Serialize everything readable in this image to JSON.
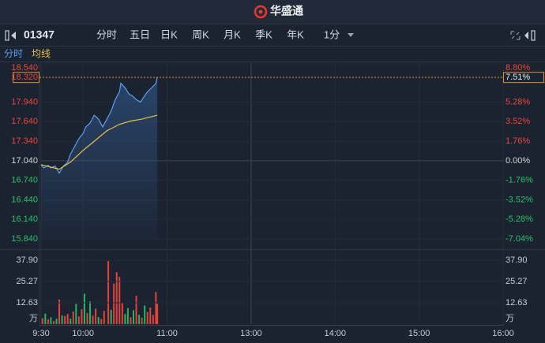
{
  "header": {
    "title": "华盛通"
  },
  "toolbar": {
    "symbol": "01347",
    "tabs": [
      "分时",
      "五日",
      "日K",
      "周K",
      "月K",
      "季K",
      "年K",
      "1分"
    ],
    "active_tab": 0
  },
  "chart_data": [
    {
      "type": "line",
      "series": [
        {
          "name": "分时",
          "color": "#5aa0f2",
          "x": [
            0,
            2,
            5,
            7,
            10,
            13,
            16,
            19,
            21,
            24,
            27,
            30,
            32,
            35,
            38,
            41,
            44,
            47,
            50,
            53,
            56,
            57,
            60,
            63,
            65,
            68,
            71,
            74,
            76,
            79,
            82,
            83
          ],
          "values": [
            16.98,
            16.93,
            16.97,
            16.93,
            16.96,
            16.85,
            16.96,
            17.02,
            17.14,
            17.26,
            17.38,
            17.46,
            17.56,
            17.62,
            17.74,
            17.68,
            17.56,
            17.68,
            17.8,
            17.98,
            18.1,
            18.23,
            18.16,
            18.06,
            18.04,
            17.98,
            17.94,
            18.04,
            18.1,
            18.16,
            18.23,
            18.32
          ]
        },
        {
          "name": "均线",
          "color": "#e8c14a",
          "x": [
            0,
            13,
            21,
            30,
            38,
            47,
            56,
            64,
            72,
            83
          ],
          "values": [
            16.98,
            16.91,
            17.02,
            17.2,
            17.34,
            17.5,
            17.6,
            17.65,
            17.68,
            17.74
          ]
        }
      ],
      "ylim": [
        15.84,
        18.54
      ],
      "yticks": [
        {
          "value": 18.54,
          "label": "18.540"
        },
        {
          "value": 17.94,
          "label": "17.940"
        },
        {
          "value": 17.64,
          "label": "17.640"
        },
        {
          "value": 17.34,
          "label": "17.340"
        },
        {
          "value": 17.04,
          "label": "17.040"
        },
        {
          "value": 16.74,
          "label": "16.740"
        },
        {
          "value": 16.44,
          "label": "16.440"
        },
        {
          "value": 16.14,
          "label": "16.140"
        },
        {
          "value": 15.84,
          "label": "15.840"
        }
      ],
      "y2lim": [
        -7.04,
        8.8
      ],
      "y2ticks": [
        {
          "value": 8.8,
          "label": "8.80%"
        },
        {
          "value": 5.28,
          "label": "5.28%"
        },
        {
          "value": 3.52,
          "label": "3.52%"
        },
        {
          "value": 1.76,
          "label": "1.76%"
        },
        {
          "value": 0,
          "label": "0.00%"
        },
        {
          "value": -1.76,
          "label": "-1.76%"
        },
        {
          "value": -3.52,
          "label": "-3.52%"
        },
        {
          "value": -5.28,
          "label": "-5.28%"
        },
        {
          "value": -7.04,
          "label": "-7.04%"
        }
      ],
      "last_price": {
        "value": 18.32,
        "label": "18.320"
      },
      "last_change": {
        "value": 7.51,
        "label": "7.51%"
      },
      "up_color": "#f0463c",
      "down_color": "#27c26c",
      "grid": true
    },
    {
      "type": "bar",
      "x": [
        1,
        3,
        5,
        7,
        9,
        11,
        13,
        15,
        17,
        19,
        21,
        23,
        25,
        27,
        29,
        31,
        33,
        35,
        37,
        39,
        41,
        43,
        45,
        48,
        50,
        52,
        54,
        56,
        58,
        60,
        62,
        64,
        66,
        68,
        70,
        72,
        74,
        76,
        78,
        80,
        82,
        83
      ],
      "values": [
        3.5,
        6.2,
        2.8,
        4.0,
        1.8,
        3.1,
        14.5,
        5.2,
        4.8,
        6.0,
        3.2,
        7.5,
        12.0,
        4.5,
        8.8,
        18.0,
        6.5,
        13.5,
        5.0,
        9.2,
        4.2,
        3.0,
        7.8,
        37.4,
        8.5,
        24.0,
        30.8,
        28.0,
        12.5,
        6.0,
        9.5,
        4.1,
        8.2,
        16.8,
        5.5,
        3.8,
        11.0,
        7.2,
        9.8,
        5.4,
        19.0,
        12.0
      ],
      "colors": [
        "#e5423b",
        "#22b565",
        "#e5423b",
        "#22b565",
        "#e5423b",
        "#22b565",
        "#e5423b",
        "#22b565",
        "#e5423b",
        "#e5423b",
        "#22b565",
        "#e5423b",
        "#22b565",
        "#e5423b",
        "#e5423b",
        "#22b565",
        "#e5423b",
        "#22b565",
        "#e5423b",
        "#e5423b",
        "#22b565",
        "#e5423b",
        "#e5423b",
        "#e5423b",
        "#22b565",
        "#e5423b",
        "#e5423b",
        "#e5423b",
        "#e5423b",
        "#22b565",
        "#22b565",
        "#e5423b",
        "#22b565",
        "#e5423b",
        "#22b565",
        "#e5423b",
        "#22b565",
        "#e5423b",
        "#e5423b",
        "#e5423b",
        "#e5423b",
        "#e5423b"
      ],
      "ylim": [
        0,
        37.9
      ],
      "yticks": [
        12.63,
        25.27,
        {
          "value": 37.9,
          "label": "37.90"
        }
      ],
      "unit": "万",
      "xlim": [
        0,
        330
      ],
      "xticks": [
        {
          "value": 0,
          "label": "9:30"
        },
        {
          "value": 30,
          "label": "10:00"
        },
        {
          "value": 90,
          "label": "11:00"
        },
        {
          "value": 150,
          "label": "13:00"
        },
        {
          "value": 210,
          "label": "14:00"
        },
        {
          "value": 270,
          "label": "15:00"
        },
        {
          "value": 330,
          "label": "16:00"
        }
      ]
    }
  ]
}
